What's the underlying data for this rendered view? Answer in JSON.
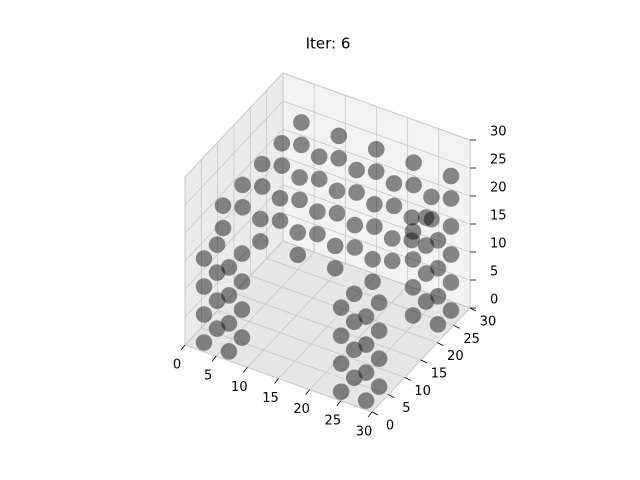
{
  "chart_data": {
    "type": "scatter3d",
    "title": "Iter: 6",
    "xlim": [
      0,
      30
    ],
    "ylim": [
      0,
      30
    ],
    "zlim": [
      0,
      30
    ],
    "xticks": [
      0,
      5,
      10,
      15,
      20,
      25,
      30
    ],
    "yticks": [
      0,
      5,
      10,
      15,
      20,
      25,
      30
    ],
    "zticks": [
      0,
      5,
      10,
      15,
      20,
      25,
      30
    ],
    "grid": true,
    "series": [
      {
        "color": "#000000",
        "x": [
          4,
          4,
          4,
          4,
          4,
          10,
          10,
          10,
          10,
          10,
          16,
          16,
          16,
          16,
          16,
          22,
          22,
          22,
          22,
          22,
          28,
          28,
          28,
          28,
          28,
          4,
          4,
          4,
          4,
          4,
          10,
          10,
          10,
          10,
          10,
          16,
          16,
          16,
          16,
          16,
          22,
          22,
          22,
          22,
          22,
          28,
          28,
          28,
          28,
          28,
          2,
          2,
          6,
          6,
          2,
          2,
          6,
          6,
          2,
          2,
          6,
          6,
          2,
          2,
          6,
          6,
          24,
          24,
          28,
          28,
          24,
          24,
          28,
          28,
          24,
          24,
          28,
          28,
          24,
          24,
          28,
          28,
          24,
          24,
          28,
          28,
          24,
          24,
          28,
          28,
          24,
          24,
          28,
          28,
          24,
          24,
          28,
          28
        ],
        "y": [
          4,
          10,
          16,
          22,
          28,
          4,
          10,
          16,
          22,
          28,
          4,
          10,
          16,
          22,
          28,
          4,
          10,
          16,
          22,
          28,
          4,
          10,
          16,
          22,
          28,
          4,
          10,
          16,
          22,
          28,
          4,
          10,
          16,
          22,
          28,
          4,
          10,
          16,
          22,
          28,
          4,
          10,
          16,
          22,
          28,
          4,
          10,
          16,
          22,
          28,
          2,
          6,
          2,
          6,
          2,
          6,
          2,
          6,
          2,
          6,
          2,
          6,
          2,
          6,
          2,
          6,
          2,
          6,
          2,
          6,
          2,
          6,
          2,
          6,
          2,
          6,
          2,
          6,
          2,
          6,
          2,
          6,
          24,
          28,
          24,
          28,
          24,
          28,
          24,
          28,
          24,
          28,
          24,
          28,
          24,
          28,
          24,
          28
        ],
        "z": [
          24,
          24,
          24,
          24,
          24,
          24,
          24,
          24,
          24,
          24,
          24,
          24,
          24,
          24,
          24,
          24,
          24,
          24,
          24,
          24,
          24,
          24,
          24,
          24,
          24,
          20,
          20,
          20,
          20,
          20,
          20,
          20,
          20,
          20,
          20,
          20,
          20,
          20,
          20,
          20,
          20,
          20,
          20,
          20,
          20,
          20,
          20,
          20,
          20,
          20,
          0,
          0,
          0,
          0,
          5,
          5,
          5,
          5,
          10,
          10,
          10,
          10,
          15,
          15,
          15,
          15,
          0,
          0,
          0,
          0,
          5,
          5,
          5,
          5,
          10,
          10,
          10,
          10,
          15,
          15,
          15,
          15,
          0,
          0,
          0,
          0,
          5,
          5,
          5,
          5,
          10,
          10,
          10,
          10,
          15,
          15,
          15,
          15
        ]
      }
    ]
  }
}
